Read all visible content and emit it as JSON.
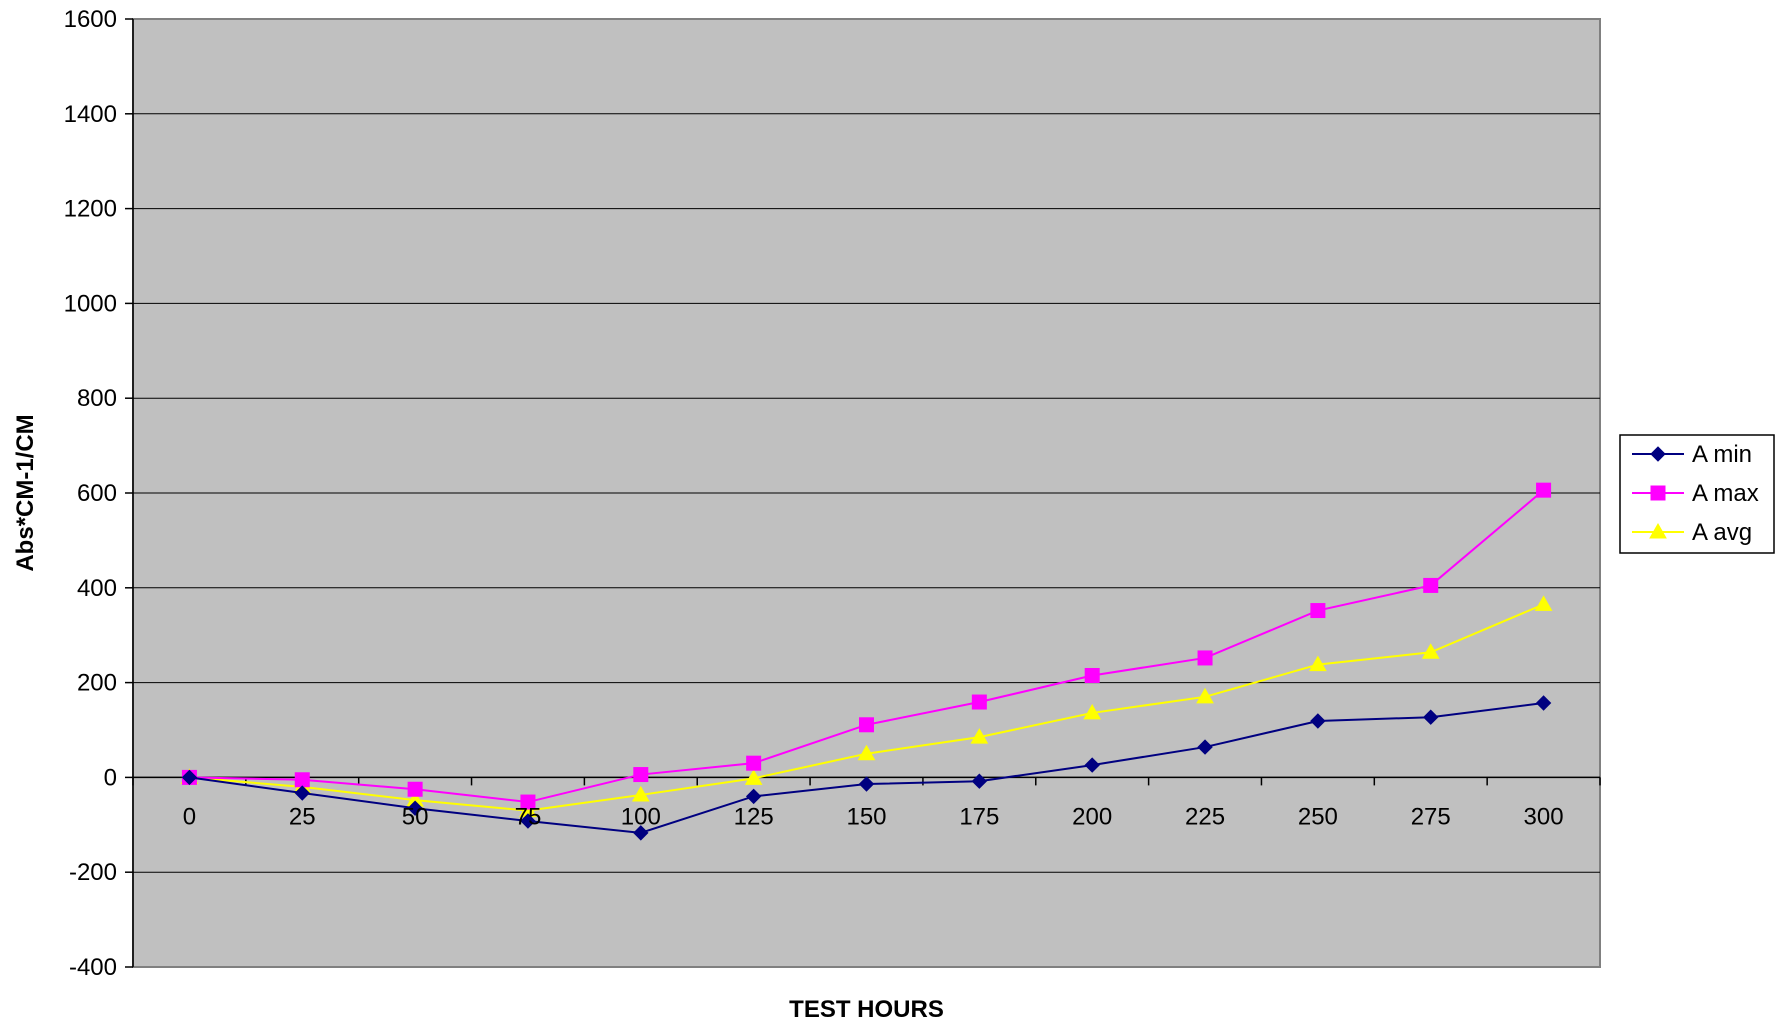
{
  "chart_data": {
    "type": "line",
    "title": "",
    "xlabel": "TEST HOURS",
    "ylabel": "Abs*CM-1/CM",
    "categories": [
      "0",
      "25",
      "50",
      "75",
      "100",
      "125",
      "150",
      "175",
      "200",
      "225",
      "250",
      "275",
      "300"
    ],
    "ylim": [
      -400,
      1600
    ],
    "yticks": [
      -400,
      -200,
      0,
      200,
      400,
      600,
      800,
      1000,
      1200,
      1400,
      1600
    ],
    "grid": true,
    "legend_position": "right",
    "plot_background": "#c0c0c0",
    "series": [
      {
        "name": "A min",
        "color": "#000080",
        "marker": "diamond",
        "values": [
          0,
          -33,
          -65,
          -92,
          -117,
          -40,
          -14,
          -8,
          26,
          64,
          119,
          127,
          157
        ]
      },
      {
        "name": "A max",
        "color": "#ff00ff",
        "marker": "square",
        "values": [
          0,
          -5,
          -25,
          -52,
          6,
          30,
          111,
          159,
          215,
          252,
          352,
          405,
          606
        ]
      },
      {
        "name": "A avg",
        "color": "#ffff00",
        "marker": "triangle",
        "values": [
          0,
          -20,
          -48,
          -70,
          -37,
          -2,
          50,
          85,
          136,
          170,
          238,
          264,
          365
        ]
      }
    ]
  }
}
